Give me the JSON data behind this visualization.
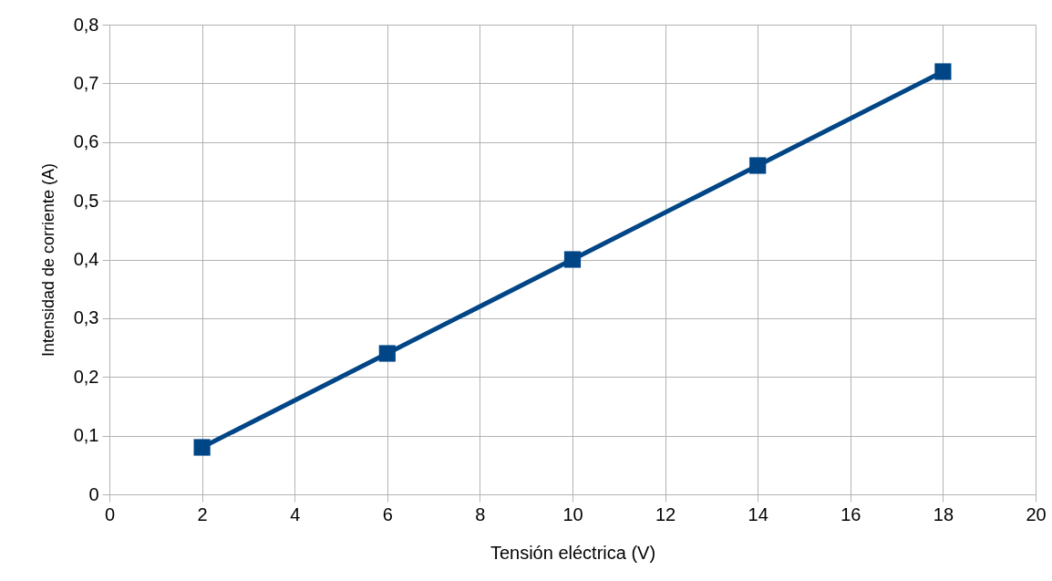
{
  "chart_data": {
    "type": "line",
    "xlabel": "Tensión eléctrica (V)",
    "ylabel": "Intensidad de corriente (A)",
    "x": [
      2,
      6,
      10,
      14,
      18
    ],
    "series": [
      {
        "color": "#004586",
        "values": [
          0.08,
          0.24,
          0.4,
          0.56,
          0.72
        ]
      }
    ],
    "xlim": [
      0,
      20
    ],
    "xticks": [
      0,
      2,
      4,
      6,
      8,
      10,
      12,
      14,
      16,
      18,
      20
    ],
    "ylim": [
      0,
      0.8
    ],
    "yticks": [
      0,
      {
        "value": 0.1,
        "label": "0,1"
      },
      {
        "value": 0.2,
        "label": "0,2"
      },
      {
        "value": 0.3,
        "label": "0,3"
      },
      {
        "value": 0.4,
        "label": "0,4"
      },
      {
        "value": 0.5,
        "label": "0,5"
      },
      {
        "value": 0.6,
        "label": "0,6"
      },
      {
        "value": 0.7,
        "label": "0,7"
      },
      {
        "value": 0.8,
        "label": "0,8"
      }
    ],
    "grid": true,
    "marker": "square",
    "line_style": "solid"
  }
}
